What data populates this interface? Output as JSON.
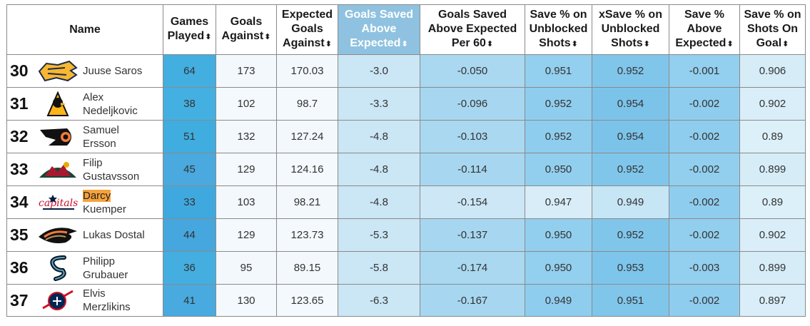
{
  "headers": {
    "name": "Name",
    "gp": [
      "Games",
      "Played"
    ],
    "ga": [
      "Goals",
      "Against"
    ],
    "xga": [
      "Expected",
      "Goals",
      "Against"
    ],
    "gsax": [
      "Goals Saved",
      "Above",
      "Expected"
    ],
    "gsax60": [
      "Goals Saved",
      "Above Expected",
      "Per 60"
    ],
    "svu": [
      "Save % on",
      "Unblocked",
      "Shots"
    ],
    "xsvu": [
      "xSave % on",
      "Unblocked",
      "Shots"
    ],
    "svax": [
      "Save %",
      "Above",
      "Expected"
    ],
    "svsog": [
      "Save % on",
      "Shots On",
      "Goal"
    ],
    "sort_arrow": "⬍"
  },
  "rows": [
    {
      "rank": "30",
      "team_logo": "nashville-predators-logo",
      "name1": "Juuse Saros",
      "name2": "",
      "highlight": false,
      "gp": "64",
      "ga": "173",
      "xga": "170.03",
      "gsax": "-3.0",
      "gsax60": "-0.050",
      "svu": "0.951",
      "xsvu": "0.952",
      "svax": "-0.001",
      "svsog": "0.906"
    },
    {
      "rank": "31",
      "team_logo": "pittsburgh-penguins-logo",
      "name1": "Alex",
      "name2": "Nedeljkovic",
      "highlight": false,
      "gp": "38",
      "ga": "102",
      "xga": "98.7",
      "gsax": "-3.3",
      "gsax60": "-0.096",
      "svu": "0.952",
      "xsvu": "0.954",
      "svax": "-0.002",
      "svsog": "0.902"
    },
    {
      "rank": "32",
      "team_logo": "philadelphia-flyers-logo",
      "name1": "Samuel",
      "name2": "Ersson",
      "highlight": false,
      "gp": "51",
      "ga": "132",
      "xga": "127.24",
      "gsax": "-4.8",
      "gsax60": "-0.103",
      "svu": "0.952",
      "xsvu": "0.954",
      "svax": "-0.002",
      "svsog": "0.89"
    },
    {
      "rank": "33",
      "team_logo": "minnesota-wild-logo",
      "name1": "Filip",
      "name2": "Gustavsson",
      "highlight": false,
      "gp": "45",
      "ga": "129",
      "xga": "124.16",
      "gsax": "-4.8",
      "gsax60": "-0.114",
      "svu": "0.950",
      "xsvu": "0.952",
      "svax": "-0.002",
      "svsog": "0.899"
    },
    {
      "rank": "34",
      "team_logo": "washington-capitals-logo",
      "name1": "Darcy",
      "name2": "Kuemper",
      "highlight": true,
      "gp": "33",
      "ga": "103",
      "xga": "98.21",
      "gsax": "-4.8",
      "gsax60": "-0.154",
      "svu": "0.947",
      "xsvu": "0.949",
      "svax": "-0.002",
      "svsog": "0.89"
    },
    {
      "rank": "35",
      "team_logo": "anaheim-ducks-logo",
      "name1": "Lukas Dostal",
      "name2": "",
      "highlight": false,
      "gp": "44",
      "ga": "129",
      "xga": "123.73",
      "gsax": "-5.3",
      "gsax60": "-0.137",
      "svu": "0.950",
      "xsvu": "0.952",
      "svax": "-0.002",
      "svsog": "0.902"
    },
    {
      "rank": "36",
      "team_logo": "seattle-kraken-logo",
      "name1": "Philipp",
      "name2": "Grubauer",
      "highlight": false,
      "gp": "36",
      "ga": "95",
      "xga": "89.15",
      "gsax": "-5.8",
      "gsax60": "-0.174",
      "svu": "0.950",
      "xsvu": "0.953",
      "svax": "-0.003",
      "svsog": "0.899"
    },
    {
      "rank": "37",
      "team_logo": "columbus-blue-jackets-logo",
      "name1": "Elvis",
      "name2": "Merzlikins",
      "highlight": false,
      "gp": "41",
      "ga": "130",
      "xga": "123.65",
      "gsax": "-6.3",
      "gsax60": "-0.167",
      "svu": "0.949",
      "xsvu": "0.951",
      "svax": "-0.002",
      "svsog": "0.897"
    }
  ],
  "colors": {
    "sorted_header": "#8fc2e0",
    "highlight": "#f7a23b",
    "gp": [
      "#43aee0",
      "#44b0e1",
      "#3faddf",
      "#4aa9de",
      "#3fa9df",
      "#45a7dd",
      "#45aee0",
      "#48aadf"
    ],
    "ga": [
      "#f2f8fc",
      "#f3f9fc",
      "#f2f8fc",
      "#f3f9fc",
      "#f2f8fc",
      "#f3f9fc",
      "#f2f8fc",
      "#f3f9fc"
    ],
    "xga": [
      "#f2f8fc",
      "#f3f9fc",
      "#f2f8fc",
      "#f3f9fc",
      "#f2f8fc",
      "#f3f9fc",
      "#f2f8fc",
      "#f3f9fc"
    ],
    "gsax": [
      "#cbe6f5",
      "#cbe6f5",
      "#cbe6f5",
      "#cbe6f5",
      "#cbe6f5",
      "#cbe6f5",
      "#cbe6f5",
      "#cbe6f5"
    ],
    "gsax60": [
      "#a9d8f0",
      "#a7d7f0",
      "#a9d8f0",
      "#a7d7f0",
      "#cde7f6",
      "#a7d7f0",
      "#a9d8f0",
      "#a7d7f0"
    ],
    "svu": [
      "#93cfee",
      "#8fcdee",
      "#8fcdee",
      "#92cfee",
      "#d8edf8",
      "#92cfee",
      "#93cfee",
      "#8fcdee"
    ],
    "xsvu": [
      "#80c6eb",
      "#7cc3ea",
      "#7cc3ea",
      "#80c6eb",
      "#c6e5f5",
      "#80c6eb",
      "#7ec5eb",
      "#80c6eb"
    ],
    "svax": [
      "#93cfee",
      "#8fcdee",
      "#8fcdee",
      "#92cfee",
      "#8fcdee",
      "#92cfee",
      "#93cfee",
      "#8fcdee"
    ],
    "svsog": [
      "#d6edf8",
      "#d9eef8",
      "#dcf0f9",
      "#d6edf8",
      "#dcf0f9",
      "#d9eef8",
      "#d6edf8",
      "#d9eef8"
    ]
  }
}
